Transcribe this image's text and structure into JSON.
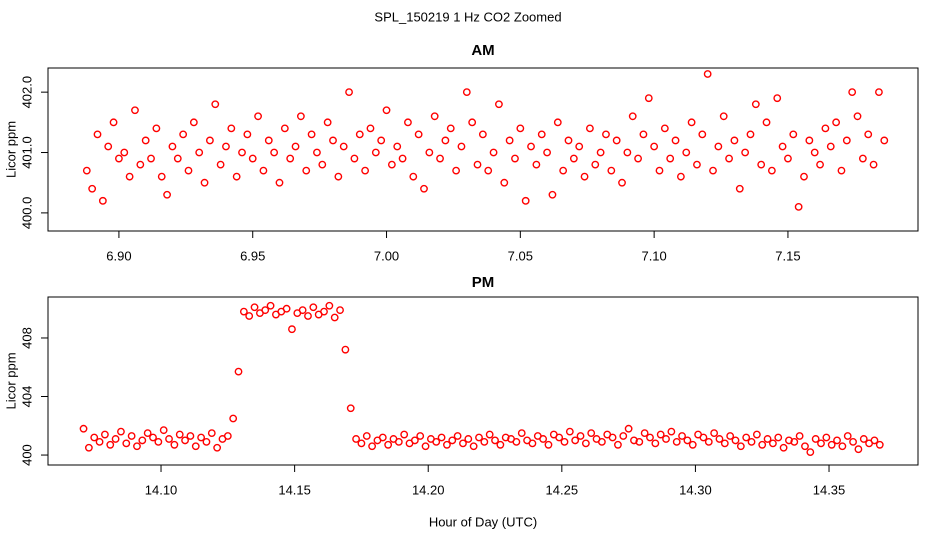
{
  "title": "SPL_150219  1 Hz CO2 Zoomed",
  "chart_data": [
    {
      "type": "scatter",
      "title": "AM",
      "ylabel": "Licor ppm",
      "color": "#ff0000",
      "xlim": [
        6.8735,
        7.1986
      ],
      "ylim": [
        399.7,
        402.4
      ],
      "xticks": [
        {
          "value": 6.9,
          "label": "6.90"
        },
        6.95,
        {
          "value": 7.0,
          "label": "7.00"
        },
        7.05,
        {
          "value": 7.1,
          "label": "7.10"
        },
        7.15
      ],
      "yticks": [
        {
          "value": 400,
          "label": "400.0"
        },
        {
          "value": 401,
          "label": "401.0"
        },
        {
          "value": 402,
          "label": "402.0"
        }
      ],
      "x": [
        6.888,
        6.89,
        6.892,
        6.894,
        6.896,
        6.898,
        6.9,
        6.902,
        6.904,
        6.906,
        6.908,
        6.91,
        6.912,
        6.914,
        6.916,
        6.918,
        6.92,
        6.922,
        6.924,
        6.926,
        6.928,
        6.93,
        6.932,
        6.934,
        6.936,
        6.938,
        6.94,
        6.942,
        6.944,
        6.946,
        6.948,
        6.95,
        6.952,
        6.954,
        6.956,
        6.958,
        6.96,
        6.962,
        6.964,
        6.966,
        6.968,
        6.97,
        6.972,
        6.974,
        6.976,
        6.978,
        6.98,
        6.982,
        6.984,
        6.986,
        6.988,
        6.99,
        6.992,
        6.994,
        6.996,
        6.998,
        7.0,
        7.002,
        7.004,
        7.006,
        7.008,
        7.01,
        7.012,
        7.014,
        7.016,
        7.018,
        7.02,
        7.022,
        7.024,
        7.026,
        7.028,
        7.03,
        7.032,
        7.034,
        7.036,
        7.038,
        7.04,
        7.042,
        7.044,
        7.046,
        7.048,
        7.05,
        7.052,
        7.054,
        7.056,
        7.058,
        7.06,
        7.062,
        7.064,
        7.066,
        7.068,
        7.07,
        7.072,
        7.074,
        7.076,
        7.078,
        7.08,
        7.082,
        7.084,
        7.086,
        7.088,
        7.09,
        7.092,
        7.094,
        7.096,
        7.098,
        7.1,
        7.102,
        7.104,
        7.106,
        7.108,
        7.11,
        7.112,
        7.114,
        7.116,
        7.118,
        7.12,
        7.122,
        7.124,
        7.126,
        7.128,
        7.13,
        7.132,
        7.134,
        7.136,
        7.138,
        7.14,
        7.142,
        7.144,
        7.146,
        7.148,
        7.15,
        7.152,
        7.154,
        7.156,
        7.158,
        7.16,
        7.162,
        7.164,
        7.166,
        7.168,
        7.17,
        7.172,
        7.174,
        7.176,
        7.178,
        7.18,
        7.182,
        7.184,
        7.186
      ],
      "values": [
        400.7,
        400.4,
        401.3,
        400.2,
        401.1,
        401.5,
        400.9,
        401.0,
        400.6,
        401.7,
        400.8,
        401.2,
        400.9,
        401.4,
        400.6,
        400.3,
        401.1,
        400.9,
        401.3,
        400.7,
        401.5,
        401.0,
        400.5,
        401.2,
        401.8,
        400.8,
        401.1,
        401.4,
        400.6,
        401.0,
        401.3,
        400.9,
        401.6,
        400.7,
        401.2,
        401.0,
        400.5,
        401.4,
        400.9,
        401.1,
        401.6,
        400.7,
        401.3,
        401.0,
        400.8,
        401.5,
        401.2,
        400.6,
        401.1,
        402.0,
        400.9,
        401.3,
        400.7,
        401.4,
        401.0,
        401.2,
        401.7,
        400.8,
        401.1,
        400.9,
        401.5,
        400.6,
        401.3,
        400.4,
        401.0,
        401.6,
        400.9,
        401.2,
        401.4,
        400.7,
        401.1,
        402.0,
        401.5,
        400.8,
        401.3,
        400.7,
        401.0,
        401.8,
        400.5,
        401.2,
        400.9,
        401.4,
        400.2,
        401.1,
        400.8,
        401.3,
        401.0,
        400.3,
        401.5,
        400.7,
        401.2,
        400.9,
        401.1,
        400.6,
        401.4,
        400.8,
        401.0,
        401.3,
        400.7,
        401.2,
        400.5,
        401.0,
        401.6,
        400.9,
        401.3,
        401.9,
        401.1,
        400.7,
        401.4,
        400.9,
        401.2,
        400.6,
        401.0,
        401.5,
        400.8,
        401.3,
        402.3,
        400.7,
        401.1,
        401.6,
        400.9,
        401.2,
        400.4,
        401.0,
        401.3,
        401.8,
        400.8,
        401.5,
        400.7,
        401.9,
        401.1,
        400.9,
        401.3,
        400.1,
        400.6,
        401.2,
        401.0,
        400.8,
        401.4,
        401.1,
        401.5,
        400.7,
        401.2,
        402.0,
        401.6,
        400.9,
        401.3,
        400.8,
        402.0,
        401.2
      ]
    },
    {
      "type": "scatter",
      "title": "PM",
      "ylabel": "Licor ppm",
      "xlabel": "Hour of Day (UTC)",
      "color": "#ff0000",
      "xlim": [
        14.0577,
        14.3833
      ],
      "ylim": [
        399.32,
        410.8
      ],
      "xticks": [
        {
          "value": 14.1,
          "label": "14.10"
        },
        14.15,
        {
          "value": 14.2,
          "label": "14.20"
        },
        14.25,
        {
          "value": 14.3,
          "label": "14.30"
        },
        14.35
      ],
      "yticks": [
        400,
        404,
        408
      ],
      "x": [
        14.071,
        14.073,
        14.075,
        14.077,
        14.079,
        14.081,
        14.083,
        14.085,
        14.087,
        14.089,
        14.091,
        14.093,
        14.095,
        14.097,
        14.099,
        14.101,
        14.103,
        14.105,
        14.107,
        14.109,
        14.111,
        14.113,
        14.115,
        14.117,
        14.119,
        14.121,
        14.123,
        14.125,
        14.127,
        14.129,
        14.131,
        14.133,
        14.135,
        14.137,
        14.139,
        14.141,
        14.143,
        14.145,
        14.147,
        14.149,
        14.151,
        14.153,
        14.155,
        14.157,
        14.159,
        14.161,
        14.163,
        14.165,
        14.167,
        14.169,
        14.171,
        14.173,
        14.175,
        14.177,
        14.179,
        14.181,
        14.183,
        14.185,
        14.187,
        14.189,
        14.191,
        14.193,
        14.195,
        14.197,
        14.199,
        14.201,
        14.203,
        14.205,
        14.207,
        14.209,
        14.211,
        14.213,
        14.215,
        14.217,
        14.219,
        14.221,
        14.223,
        14.225,
        14.227,
        14.229,
        14.231,
        14.233,
        14.235,
        14.237,
        14.239,
        14.241,
        14.243,
        14.245,
        14.247,
        14.249,
        14.251,
        14.253,
        14.255,
        14.257,
        14.259,
        14.261,
        14.263,
        14.265,
        14.267,
        14.269,
        14.271,
        14.273,
        14.275,
        14.277,
        14.279,
        14.281,
        14.283,
        14.285,
        14.287,
        14.289,
        14.291,
        14.293,
        14.295,
        14.297,
        14.299,
        14.301,
        14.303,
        14.305,
        14.307,
        14.309,
        14.311,
        14.313,
        14.315,
        14.317,
        14.319,
        14.321,
        14.323,
        14.325,
        14.327,
        14.329,
        14.331,
        14.333,
        14.335,
        14.337,
        14.339,
        14.341,
        14.343,
        14.345,
        14.347,
        14.349,
        14.351,
        14.353,
        14.355,
        14.357,
        14.359,
        14.361,
        14.363,
        14.365,
        14.367,
        14.369
      ],
      "values": [
        401.8,
        400.5,
        401.2,
        400.9,
        401.4,
        400.7,
        401.1,
        401.6,
        400.8,
        401.3,
        400.6,
        401.0,
        401.5,
        401.2,
        400.9,
        401.7,
        401.1,
        400.7,
        401.4,
        401.0,
        401.3,
        400.6,
        401.2,
        400.9,
        401.5,
        400.5,
        401.1,
        401.3,
        402.5,
        405.7,
        409.8,
        409.5,
        410.1,
        409.7,
        409.9,
        410.2,
        409.6,
        409.8,
        410.0,
        408.6,
        409.7,
        409.9,
        409.5,
        410.1,
        409.6,
        409.8,
        410.2,
        409.4,
        409.9,
        407.2,
        403.2,
        401.1,
        400.8,
        401.3,
        400.6,
        401.0,
        401.2,
        400.7,
        401.1,
        400.9,
        401.4,
        400.8,
        401.0,
        401.3,
        400.6,
        401.1,
        400.9,
        401.2,
        400.7,
        401.0,
        401.3,
        400.8,
        401.1,
        400.6,
        401.2,
        400.9,
        401.4,
        401.0,
        400.7,
        401.2,
        401.1,
        400.9,
        401.5,
        401.0,
        400.8,
        401.3,
        401.1,
        400.7,
        401.4,
        401.2,
        400.9,
        401.6,
        401.0,
        401.3,
        400.8,
        401.5,
        401.1,
        400.9,
        401.4,
        401.2,
        400.7,
        401.3,
        401.8,
        401.0,
        400.9,
        401.5,
        401.2,
        400.8,
        401.4,
        401.1,
        401.6,
        400.9,
        401.3,
        401.0,
        400.7,
        401.4,
        401.2,
        400.9,
        401.5,
        401.1,
        400.8,
        401.3,
        401.0,
        400.6,
        401.2,
        400.9,
        401.4,
        400.7,
        401.1,
        400.8,
        401.2,
        400.5,
        401.0,
        400.9,
        401.3,
        400.6,
        400.2,
        401.1,
        400.8,
        401.2,
        400.7,
        401.0,
        400.6,
        401.3,
        400.9,
        400.4,
        401.1,
        400.8,
        401.0,
        400.7
      ]
    }
  ]
}
